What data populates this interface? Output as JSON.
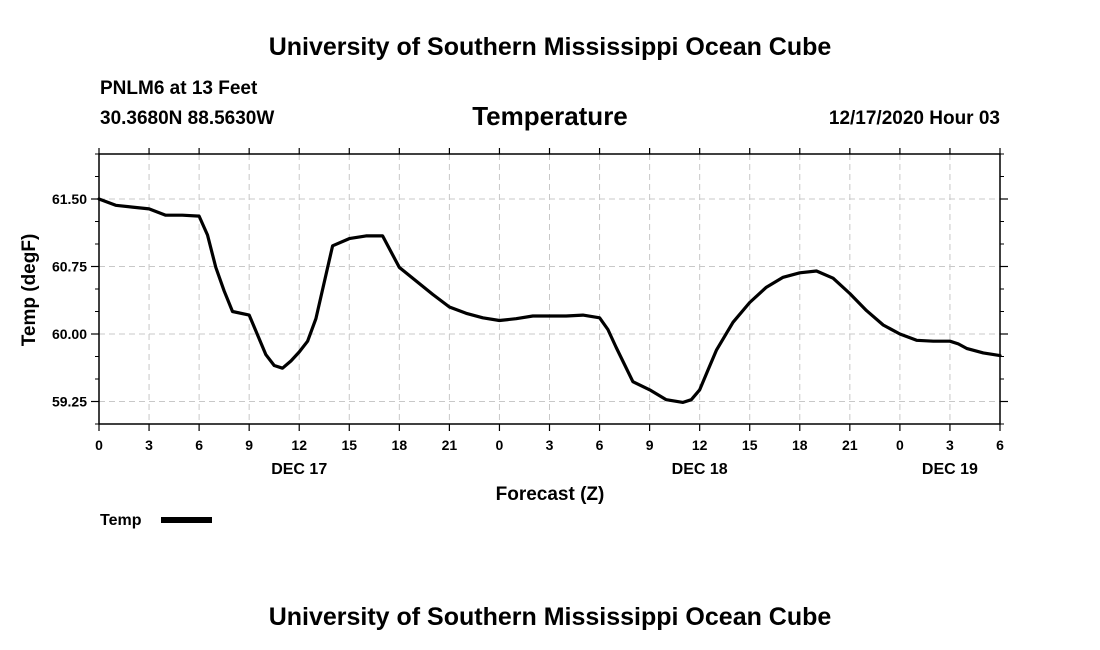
{
  "header": {
    "title_top": "University of Southern Mississippi Ocean Cube",
    "station": "PNLM6 at 13 Feet",
    "coords": "30.3680N 88.5630W",
    "date_hour": "12/17/2020 Hour 03"
  },
  "footer": {
    "title_bottom": "University of Southern Mississippi Ocean Cube"
  },
  "legend": {
    "label": "Temp"
  },
  "colors": {
    "line": "#000000",
    "grid": "#c8c8c8",
    "background": "#ffffff"
  },
  "chart_data": {
    "type": "line",
    "title": "Temperature",
    "xlabel": "Forecast (Z)",
    "ylabel": "Temp (degF)",
    "grid": true,
    "xlim": [
      0,
      54
    ],
    "ylim": [
      59.0,
      62.0
    ],
    "x_ticks": [
      0,
      3,
      6,
      9,
      12,
      15,
      18,
      21,
      24,
      27,
      30,
      33,
      36,
      39,
      42,
      45,
      48,
      51,
      54
    ],
    "x_tick_labels": [
      "0",
      "3",
      "6",
      "9",
      "12",
      "15",
      "18",
      "21",
      "0",
      "3",
      "6",
      "9",
      "12",
      "15",
      "18",
      "21",
      "0",
      "3",
      "6"
    ],
    "y_ticks": [
      59.25,
      60.0,
      60.75,
      61.5
    ],
    "y_tick_labels": [
      "59.25",
      "60.00",
      "60.75",
      "61.50"
    ],
    "date_labels": [
      {
        "x": 12,
        "label": "DEC 17"
      },
      {
        "x": 36,
        "label": "DEC 18"
      },
      {
        "x": 51,
        "label": "DEC 19"
      }
    ],
    "series": [
      {
        "name": "Temp",
        "x": [
          0,
          1,
          2,
          3,
          4,
          5,
          6,
          6.5,
          7,
          7.5,
          8,
          9,
          10,
          10.5,
          11,
          11.5,
          12,
          12.5,
          13,
          14,
          15,
          16,
          17,
          18,
          19,
          20,
          21,
          22,
          23,
          24,
          25,
          26,
          27,
          28,
          29,
          30,
          30.5,
          31,
          32,
          33,
          34,
          35,
          35.5,
          36,
          36.5,
          37,
          38,
          39,
          40,
          41,
          42,
          43,
          44,
          45,
          46,
          47,
          48,
          49,
          50,
          51,
          51.5,
          52,
          53,
          54
        ],
        "values": [
          61.5,
          61.43,
          61.41,
          61.39,
          61.32,
          61.32,
          61.31,
          61.1,
          60.74,
          60.48,
          60.25,
          60.21,
          59.77,
          59.65,
          59.62,
          59.7,
          59.8,
          59.92,
          60.17,
          60.98,
          61.06,
          61.09,
          61.09,
          60.74,
          60.59,
          60.44,
          60.3,
          60.23,
          60.18,
          60.15,
          60.17,
          60.2,
          60.2,
          60.2,
          60.21,
          60.18,
          60.05,
          59.85,
          59.47,
          59.38,
          59.27,
          59.24,
          59.27,
          59.38,
          59.6,
          59.82,
          60.13,
          60.35,
          60.52,
          60.63,
          60.68,
          60.7,
          60.62,
          60.45,
          60.26,
          60.1,
          60.0,
          59.93,
          59.92,
          59.92,
          59.89,
          59.84,
          59.79,
          59.76
        ]
      }
    ]
  }
}
